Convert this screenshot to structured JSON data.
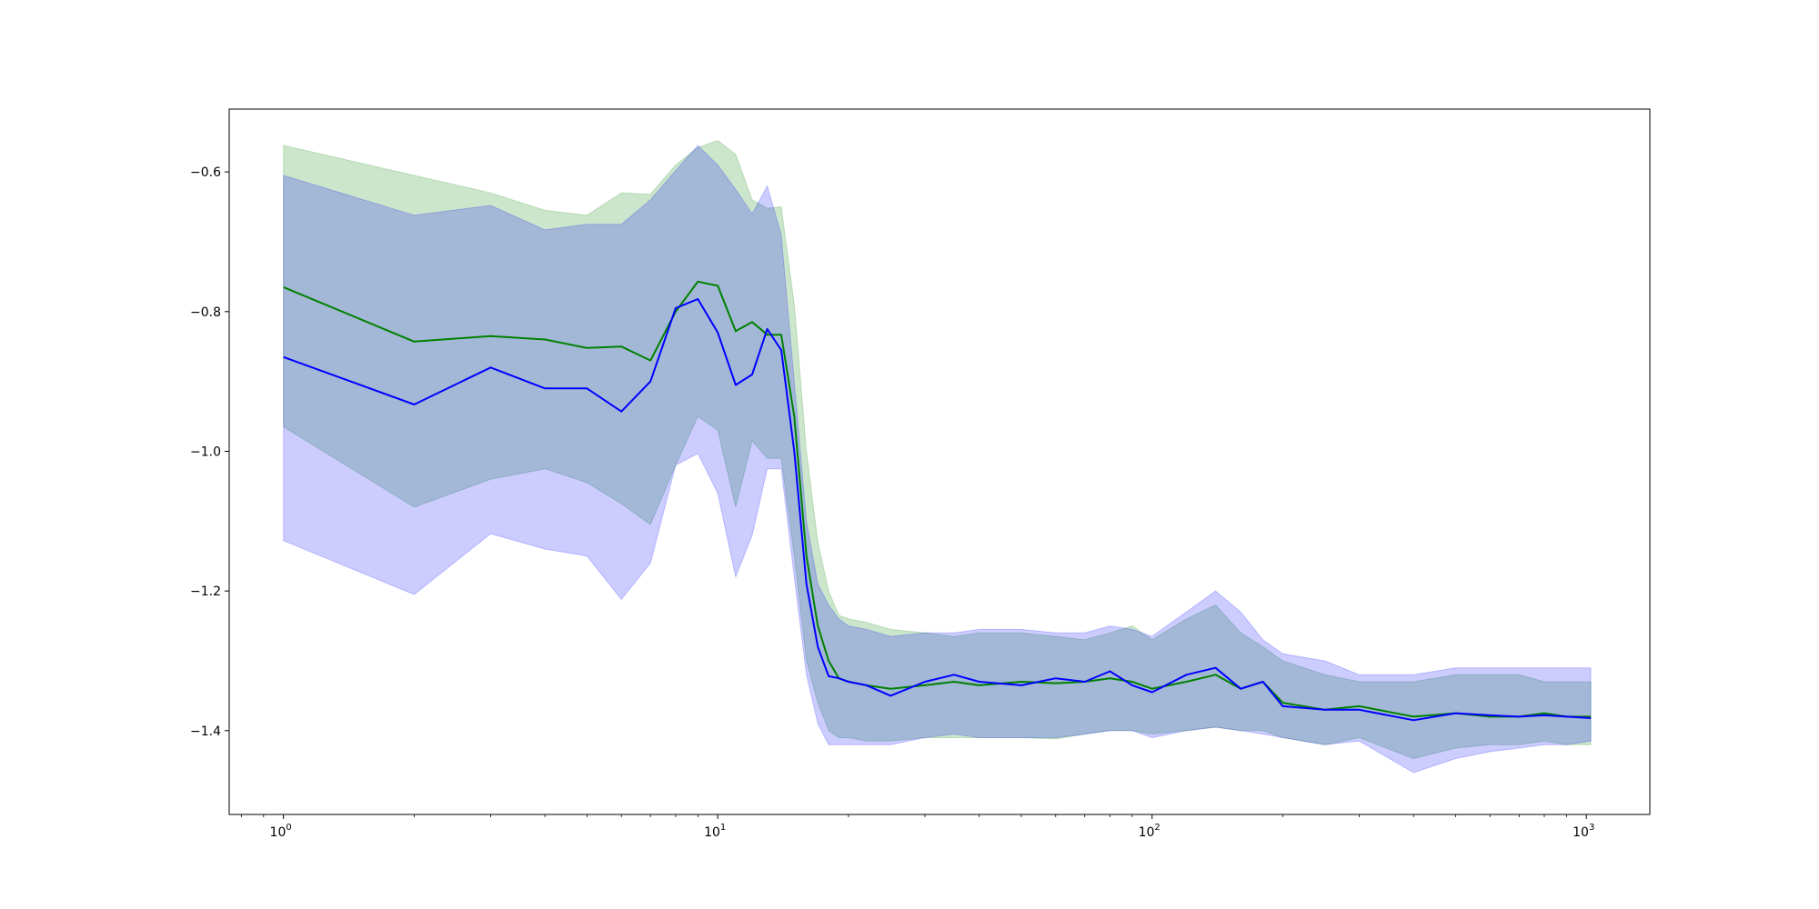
{
  "chart_data": {
    "type": "line",
    "title": "",
    "xlabel": "",
    "ylabel": "",
    "x_scale": "log",
    "xlim": [
      0.75,
      1400
    ],
    "ylim": [
      -1.52,
      -0.51
    ],
    "grid": false,
    "legend": "none",
    "x_ticks": [
      {
        "value": 1,
        "base": "10",
        "exp": "0"
      },
      {
        "value": 10,
        "base": "10",
        "exp": "1"
      },
      {
        "value": 100,
        "base": "10",
        "exp": "2"
      },
      {
        "value": 1000,
        "base": "10",
        "exp": "3"
      }
    ],
    "y_ticks": [
      {
        "value": -0.6,
        "label": "−0.6"
      },
      {
        "value": -0.8,
        "label": "−0.8"
      },
      {
        "value": -1.0,
        "label": "−1.0"
      },
      {
        "value": -1.2,
        "label": "−1.2"
      },
      {
        "value": -1.4,
        "label": "−1.4"
      }
    ],
    "series": [
      {
        "color": "#008000",
        "band_color": "#008000",
        "band_opacity": 0.2,
        "x": [
          1,
          2,
          3,
          4,
          5,
          6,
          7,
          8,
          9,
          10,
          11,
          12,
          13,
          14,
          15,
          16,
          17,
          18,
          19,
          20,
          22,
          25,
          30,
          35,
          40,
          50,
          60,
          70,
          80,
          90,
          100,
          120,
          140,
          160,
          180,
          200,
          250,
          300,
          400,
          500,
          600,
          700,
          800,
          900,
          1024
        ],
        "mean": [
          -0.765,
          -0.843,
          -0.835,
          -0.84,
          -0.852,
          -0.85,
          -0.87,
          -0.8,
          -0.757,
          -0.763,
          -0.828,
          -0.815,
          -0.833,
          -0.833,
          -0.95,
          -1.15,
          -1.25,
          -1.3,
          -1.325,
          -1.33,
          -1.335,
          -1.34,
          -1.335,
          -1.33,
          -1.335,
          -1.33,
          -1.332,
          -1.33,
          -1.325,
          -1.33,
          -1.34,
          -1.33,
          -1.32,
          -1.34,
          -1.33,
          -1.36,
          -1.37,
          -1.365,
          -1.38,
          -1.375,
          -1.38,
          -1.38,
          -1.375,
          -1.38,
          -1.38
        ],
        "upper": [
          -0.562,
          -0.605,
          -0.63,
          -0.655,
          -0.662,
          -0.63,
          -0.632,
          -0.59,
          -0.565,
          -0.555,
          -0.575,
          -0.64,
          -0.652,
          -0.65,
          -0.79,
          -1.0,
          -1.13,
          -1.2,
          -1.235,
          -1.24,
          -1.245,
          -1.255,
          -1.26,
          -1.265,
          -1.26,
          -1.26,
          -1.265,
          -1.27,
          -1.26,
          -1.25,
          -1.27,
          -1.24,
          -1.22,
          -1.26,
          -1.28,
          -1.3,
          -1.32,
          -1.33,
          -1.33,
          -1.32,
          -1.32,
          -1.32,
          -1.33,
          -1.33,
          -1.33
        ],
        "lower": [
          -0.965,
          -1.08,
          -1.04,
          -1.025,
          -1.045,
          -1.075,
          -1.105,
          -1.02,
          -0.95,
          -0.97,
          -1.08,
          -0.985,
          -1.01,
          -1.01,
          -1.15,
          -1.3,
          -1.36,
          -1.4,
          -1.41,
          -1.41,
          -1.415,
          -1.415,
          -1.41,
          -1.41,
          -1.41,
          -1.41,
          -1.412,
          -1.405,
          -1.4,
          -1.4,
          -1.405,
          -1.4,
          -1.395,
          -1.4,
          -1.4,
          -1.41,
          -1.42,
          -1.41,
          -1.44,
          -1.425,
          -1.42,
          -1.42,
          -1.415,
          -1.42,
          -1.42
        ]
      },
      {
        "color": "#0000ff",
        "band_color": "#0000ff",
        "band_opacity": 0.2,
        "x": [
          1,
          2,
          3,
          4,
          5,
          6,
          7,
          8,
          9,
          10,
          11,
          12,
          13,
          14,
          15,
          16,
          17,
          18,
          19,
          20,
          22,
          25,
          30,
          35,
          40,
          50,
          60,
          70,
          80,
          90,
          100,
          120,
          140,
          160,
          180,
          200,
          250,
          300,
          400,
          500,
          600,
          700,
          800,
          900,
          1024
        ],
        "mean": [
          -0.865,
          -0.933,
          -0.88,
          -0.91,
          -0.91,
          -0.943,
          -0.9,
          -0.795,
          -0.782,
          -0.83,
          -0.905,
          -0.89,
          -0.825,
          -0.855,
          -1.0,
          -1.19,
          -1.28,
          -1.322,
          -1.325,
          -1.33,
          -1.335,
          -1.35,
          -1.33,
          -1.32,
          -1.33,
          -1.335,
          -1.325,
          -1.33,
          -1.315,
          -1.335,
          -1.345,
          -1.32,
          -1.31,
          -1.34,
          -1.33,
          -1.365,
          -1.37,
          -1.37,
          -1.385,
          -1.375,
          -1.378,
          -1.38,
          -1.378,
          -1.38,
          -1.382
        ],
        "upper": [
          -0.605,
          -0.662,
          -0.648,
          -0.683,
          -0.675,
          -0.675,
          -0.64,
          -0.598,
          -0.562,
          -0.59,
          -0.625,
          -0.66,
          -0.62,
          -0.69,
          -0.9,
          -1.1,
          -1.19,
          -1.22,
          -1.24,
          -1.25,
          -1.255,
          -1.265,
          -1.26,
          -1.26,
          -1.255,
          -1.255,
          -1.26,
          -1.26,
          -1.25,
          -1.255,
          -1.265,
          -1.23,
          -1.2,
          -1.23,
          -1.27,
          -1.29,
          -1.3,
          -1.32,
          -1.32,
          -1.31,
          -1.31,
          -1.31,
          -1.31,
          -1.31,
          -1.31
        ],
        "lower": [
          -1.128,
          -1.205,
          -1.118,
          -1.14,
          -1.15,
          -1.212,
          -1.16,
          -1.02,
          -1.003,
          -1.06,
          -1.18,
          -1.12,
          -1.025,
          -1.025,
          -1.18,
          -1.32,
          -1.39,
          -1.42,
          -1.42,
          -1.42,
          -1.42,
          -1.42,
          -1.41,
          -1.405,
          -1.41,
          -1.41,
          -1.41,
          -1.405,
          -1.4,
          -1.4,
          -1.41,
          -1.4,
          -1.395,
          -1.4,
          -1.405,
          -1.41,
          -1.42,
          -1.415,
          -1.46,
          -1.44,
          -1.43,
          -1.425,
          -1.42,
          -1.42,
          -1.415
        ]
      }
    ]
  }
}
